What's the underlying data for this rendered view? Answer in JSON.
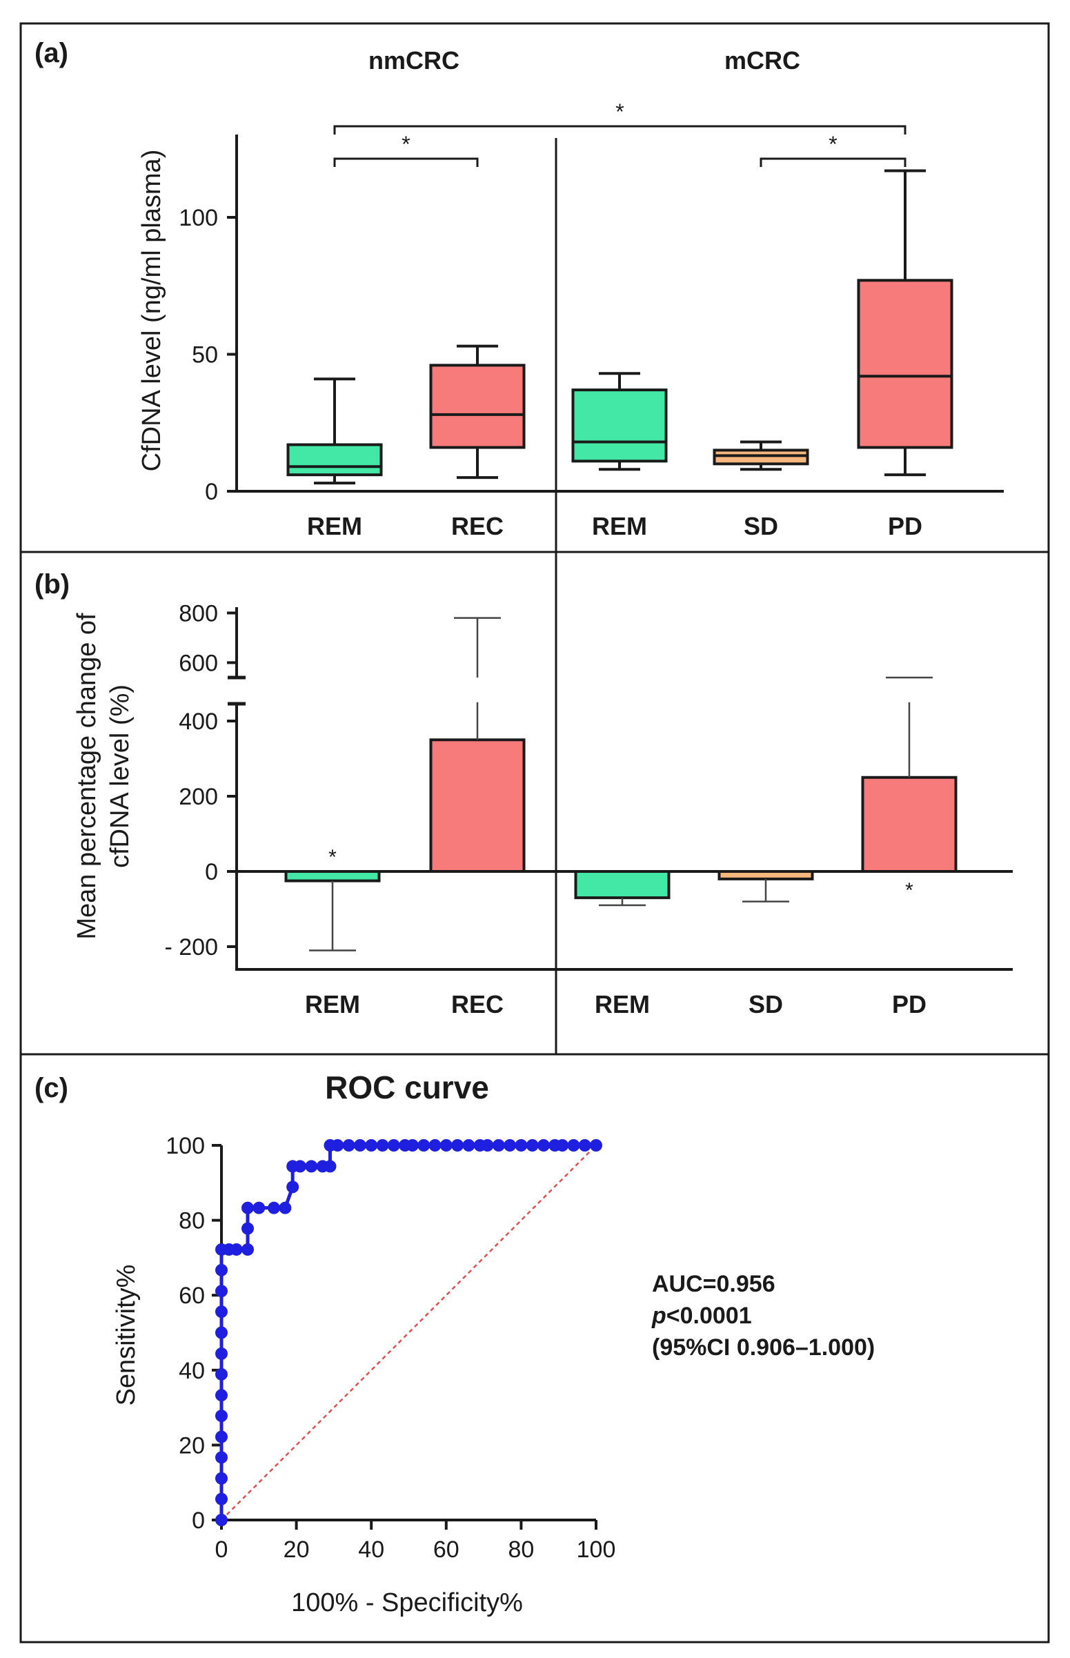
{
  "colors": {
    "green": "#43e8a6",
    "red": "#f87b7b",
    "orange": "#f6b77e",
    "roc": "#1f1fe0",
    "diag": "#e05050",
    "ink": "#1a1a1a"
  },
  "chart_data": [
    {
      "panel": "(a)",
      "type": "box",
      "group_labels": [
        "nmCRC",
        "mCRC"
      ],
      "ylabel": "CfDNA level (ng/ml plasma)",
      "ylim": [
        0,
        130
      ],
      "yticks": [
        0,
        50,
        100
      ],
      "categories": [
        "REM",
        "REC",
        "REM",
        "SD",
        "PD"
      ],
      "groups": [
        "nmCRC",
        "nmCRC",
        "mCRC",
        "mCRC",
        "mCRC"
      ],
      "colors": [
        "green",
        "red",
        "green",
        "orange",
        "red"
      ],
      "boxes": [
        {
          "min": 3,
          "q1": 6,
          "median": 9,
          "q3": 17,
          "max": 41
        },
        {
          "min": 5,
          "q1": 16,
          "median": 28,
          "q3": 46,
          "max": 53
        },
        {
          "min": 8,
          "q1": 11,
          "median": 18,
          "q3": 37,
          "max": 43
        },
        {
          "min": 8,
          "q1": 10,
          "median": 13,
          "q3": 15,
          "max": 18
        },
        {
          "min": 6,
          "q1": 16,
          "median": 42,
          "q3": 77,
          "max": 117
        }
      ],
      "significance": [
        {
          "from": 0,
          "to": 1,
          "label": "*"
        },
        {
          "from": 3,
          "to": 4,
          "label": "*"
        },
        {
          "from": 0,
          "to": 4,
          "label": "*"
        }
      ]
    },
    {
      "panel": "(b)",
      "type": "bar",
      "ylabel": [
        "Mean percentage change of",
        "cfDNA level (%)"
      ],
      "axis_break": [
        450,
        540
      ],
      "yticks": [
        "- 200",
        "0",
        "200",
        "400",
        "600",
        "800"
      ],
      "ytick_values": [
        -200,
        0,
        200,
        400,
        600,
        800
      ],
      "categories": [
        "REM",
        "REC",
        "REM",
        "SD",
        "PD"
      ],
      "colors": [
        "green",
        "red",
        "green",
        "orange",
        "red"
      ],
      "values": [
        -25,
        350,
        -70,
        -20,
        250
      ],
      "error_lower": [
        -210,
        null,
        -90,
        -80,
        null
      ],
      "error_upper": [
        null,
        780,
        null,
        null,
        540
      ],
      "stars": [
        "*",
        "",
        "",
        "",
        "*"
      ]
    },
    {
      "panel": "(c)",
      "type": "scatter",
      "title": "ROC curve",
      "xlabel": "100% - Specificity%",
      "ylabel": "Sensitivity%",
      "xlim": [
        0,
        100
      ],
      "ylim": [
        0,
        100
      ],
      "xticks": [
        0,
        20,
        40,
        60,
        80,
        100
      ],
      "yticks": [
        0,
        20,
        40,
        60,
        80,
        100
      ],
      "x": [
        0,
        0,
        0,
        0,
        0,
        0,
        0,
        0,
        0,
        0,
        0,
        0,
        0,
        0,
        2,
        4,
        7,
        7,
        7,
        10,
        14,
        17,
        19,
        19,
        21,
        24,
        27,
        29,
        29,
        31,
        34,
        37,
        40,
        43,
        46,
        49,
        51,
        54,
        57,
        60,
        63,
        66,
        69,
        71,
        74,
        77,
        80,
        83,
        86,
        89,
        91,
        94,
        97,
        100
      ],
      "y": [
        0,
        5.6,
        11.1,
        16.7,
        22.2,
        27.8,
        33.3,
        38.9,
        44.4,
        50,
        55.6,
        61.1,
        66.7,
        72.2,
        72.2,
        72.2,
        72.2,
        77.8,
        83.3,
        83.3,
        83.3,
        83.3,
        88.9,
        94.4,
        94.4,
        94.4,
        94.4,
        94.4,
        100,
        100,
        100,
        100,
        100,
        100,
        100,
        100,
        100,
        100,
        100,
        100,
        100,
        100,
        100,
        100,
        100,
        100,
        100,
        100,
        100,
        100,
        100,
        100,
        100,
        100
      ],
      "reference_line": [
        [
          0,
          0
        ],
        [
          100,
          100
        ]
      ],
      "annotations": [
        "AUC=0.956",
        "p<0.0001",
        "(95%CI 0.906–1.000)"
      ]
    }
  ]
}
